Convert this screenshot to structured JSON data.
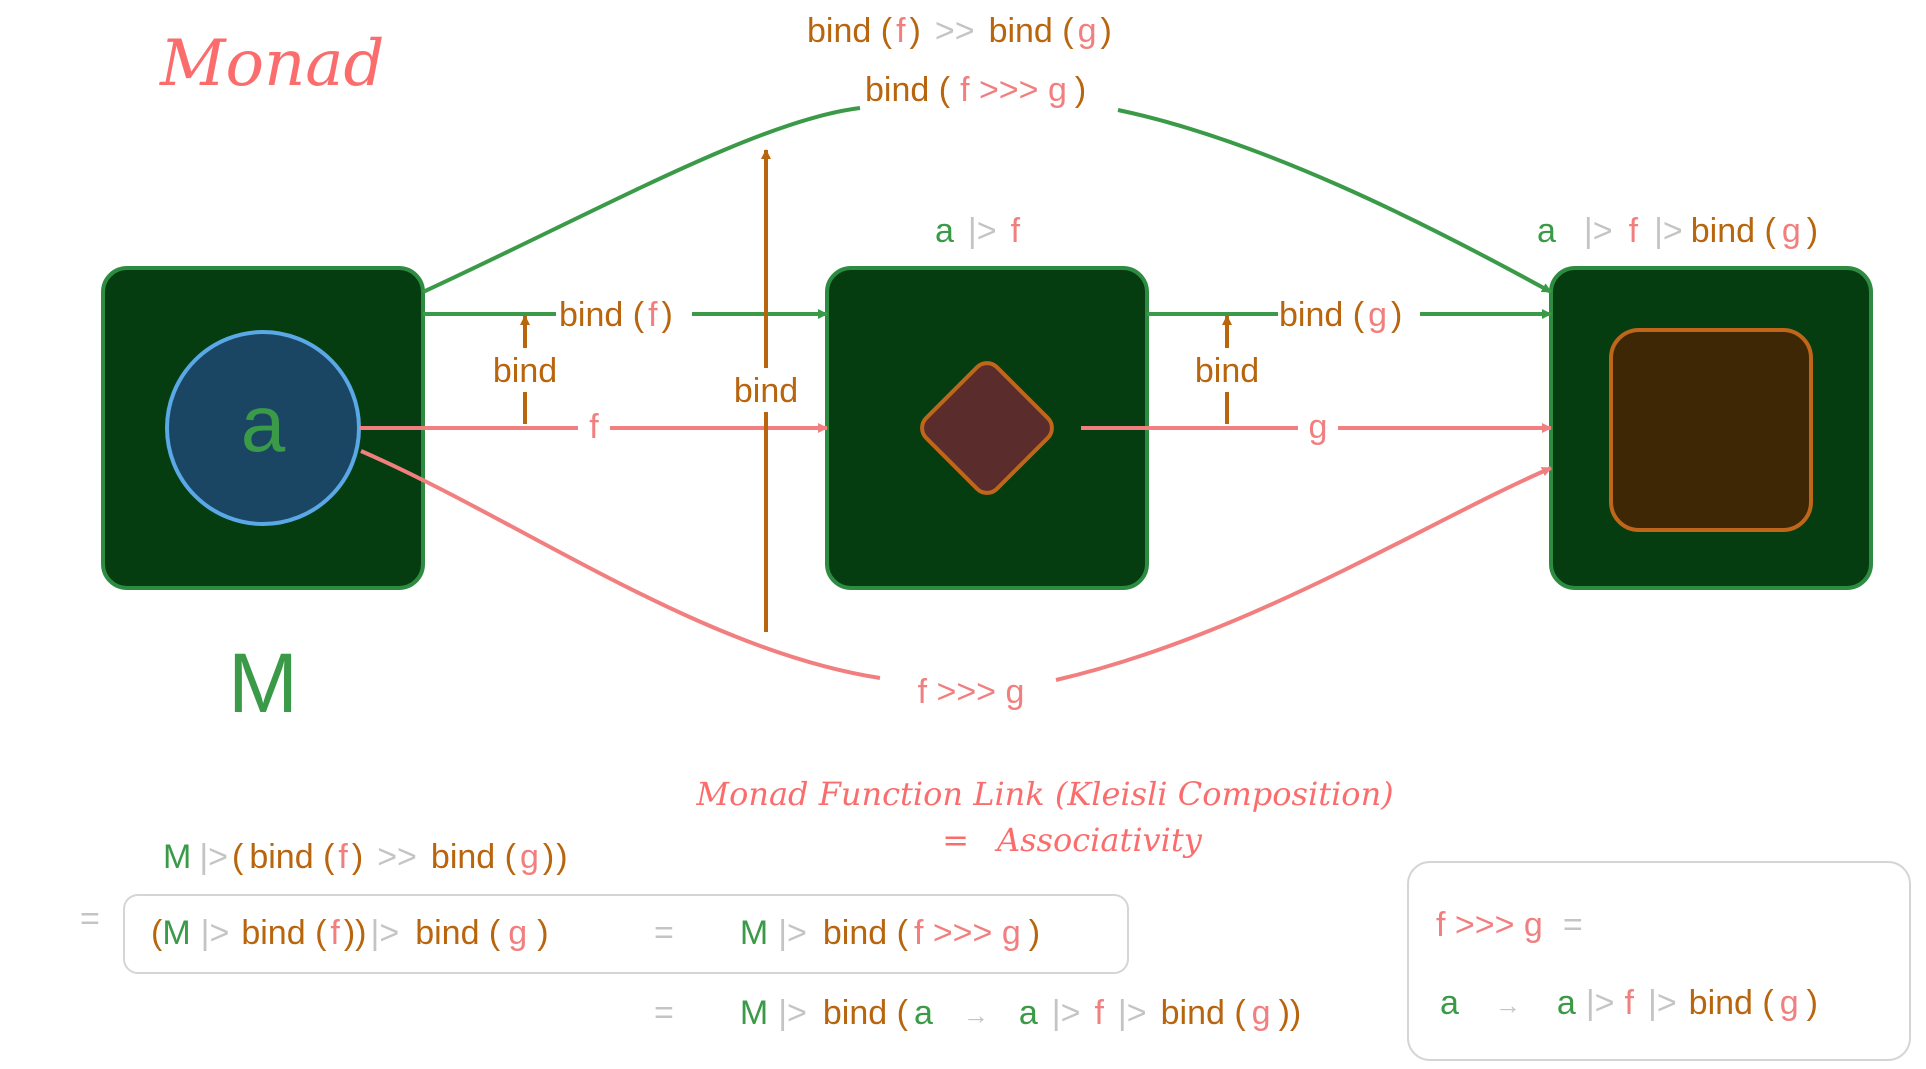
{
  "title": "Monad",
  "colors": {
    "green": "#3a9a48",
    "brown": "#b8650e",
    "pink": "#f27f7f",
    "grey": "#c4c4c4",
    "title": "#fb6d6d",
    "box_fill": "#053c10",
    "circle_fill": "#1a4663",
    "circle_stroke": "#5aa8e6",
    "diamond_fill": "#5b2c2c",
    "square_fill": "#3e2705"
  },
  "box_left": {
    "circle_label": "a",
    "caption": "M"
  },
  "box_mid": {
    "label": {
      "a": "a",
      "pipe": "|>",
      "f": "f"
    }
  },
  "box_right": {
    "label": {
      "a": "a",
      "pipe1": "|>",
      "f": "f",
      "pipe2": "|>",
      "bind": "bind (",
      "g": "g",
      "close": ")"
    }
  },
  "top_label_1": {
    "bind1": "bind (",
    "f": "f",
    "close1": ")",
    "op": ">>",
    "bind2": "bind (",
    "g": "g",
    "close2": ")"
  },
  "top_label_2": {
    "bind": "bind (",
    "expr": "f >>> g",
    "close": ")"
  },
  "arrow_bind_f": {
    "bind": "bind (",
    "f": "f",
    "close": ")"
  },
  "arrow_bind_g": {
    "bind": "bind (",
    "g": "g",
    "close": ")"
  },
  "lift_left": "bind",
  "lift_center": "bind",
  "lift_right": "bind",
  "arrow_f": "f",
  "arrow_g": "g",
  "arrow_fg": "f >>> g",
  "kleisli_title": "Monad Function Link (Kleisli Composition)",
  "kleisli_subtitle": {
    "eq": "=",
    "word": "Associativity"
  },
  "eq_line1": {
    "M": "M",
    "pipe": "|>",
    "p1": "(",
    "bind1": "bind (",
    "f": "f",
    "close1": ")",
    "op": ">>",
    "bind2": "bind (",
    "g": "g",
    "close2": ")",
    "p2": ")"
  },
  "eq_line2": {
    "eq": "=",
    "p1": "(",
    "M": "M",
    "pipe": "|>",
    "bind1": "bind (",
    "f": "f",
    "close1": "))",
    "pipe2": "|>",
    "bind2": "bind (",
    "g": "g",
    "close2": ")"
  },
  "eq_line2_rhs": {
    "eq": "=",
    "M": "M",
    "pipe": "|>",
    "bind": "bind (",
    "expr": "f >>> g",
    "close": ")"
  },
  "eq_line3": {
    "eq": "=",
    "M": "M",
    "pipe": "|>",
    "bind": "bind (",
    "a": "a",
    "arrow": "→",
    "a2": "a",
    "pipe2": "|>",
    "f": "f",
    "pipe3": "|>",
    "bind2": "bind (",
    "g": "g",
    "close": "))"
  },
  "def_box": {
    "lhs": "f >>> g",
    "eq": "=",
    "a": "a",
    "arrow": "→",
    "a2": "a",
    "pipe1": "|>",
    "f": "f",
    "pipe2": "|>",
    "bind": "bind (",
    "g": "g",
    "close": ")"
  }
}
